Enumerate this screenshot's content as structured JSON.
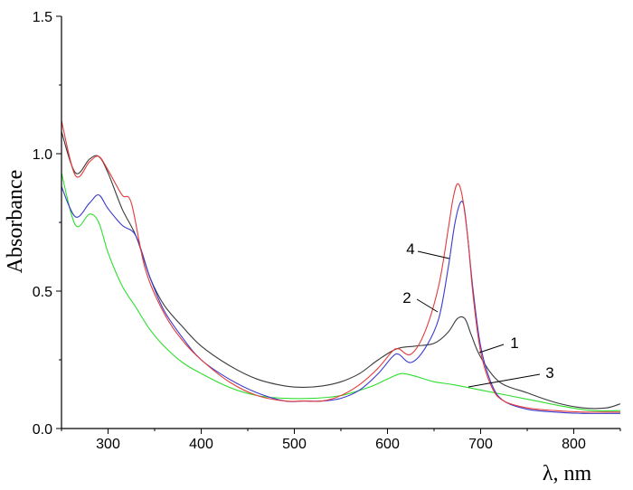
{
  "chart_data": {
    "type": "line",
    "xlabel": "λ, nm",
    "ylabel": "Absorbance",
    "xlim": [
      250,
      850
    ],
    "ylim": [
      0,
      1.5
    ],
    "x_ticks": [
      300,
      400,
      500,
      600,
      700,
      800
    ],
    "x_tick_labels": [
      "300",
      "400",
      "500",
      "600",
      "700",
      "800"
    ],
    "y_ticks": [
      0,
      0.5,
      1.0,
      1.5
    ],
    "y_tick_labels": [
      "0.0",
      "0.5",
      "1.0",
      "1.5"
    ],
    "grid": false,
    "series": [
      {
        "name": "1",
        "color": "#3a3a3a",
        "x": [
          250,
          265,
          280,
          290,
          300,
          315,
          330,
          345,
          360,
          380,
          400,
          430,
          460,
          490,
          510,
          530,
          550,
          570,
          590,
          610,
          630,
          650,
          665,
          675,
          683,
          690,
          700,
          720,
          750,
          780,
          810,
          835,
          850
        ],
        "y": [
          1.08,
          0.93,
          0.98,
          0.99,
          0.93,
          0.8,
          0.7,
          0.55,
          0.45,
          0.37,
          0.3,
          0.23,
          0.18,
          0.155,
          0.15,
          0.155,
          0.17,
          0.2,
          0.25,
          0.29,
          0.3,
          0.31,
          0.35,
          0.4,
          0.4,
          0.34,
          0.26,
          0.17,
          0.13,
          0.095,
          0.075,
          0.075,
          0.09
        ]
      },
      {
        "name": "2",
        "color": "#3a3acc",
        "x": [
          250,
          265,
          280,
          290,
          300,
          315,
          330,
          345,
          360,
          380,
          400,
          430,
          460,
          490,
          510,
          530,
          550,
          570,
          590,
          605,
          612,
          625,
          640,
          655,
          665,
          672,
          678,
          682,
          686,
          692,
          700,
          712,
          725,
          750,
          780,
          810,
          850
        ],
        "y": [
          0.88,
          0.77,
          0.82,
          0.85,
          0.8,
          0.74,
          0.7,
          0.55,
          0.43,
          0.33,
          0.25,
          0.18,
          0.13,
          0.1,
          0.1,
          0.1,
          0.11,
          0.14,
          0.2,
          0.26,
          0.27,
          0.24,
          0.29,
          0.4,
          0.58,
          0.74,
          0.82,
          0.81,
          0.7,
          0.5,
          0.3,
          0.16,
          0.1,
          0.07,
          0.06,
          0.055,
          0.055
        ]
      },
      {
        "name": "3",
        "color": "#2ede2e",
        "x": [
          250,
          265,
          280,
          290,
          300,
          315,
          330,
          345,
          360,
          380,
          400,
          430,
          460,
          490,
          520,
          550,
          580,
          600,
          615,
          630,
          650,
          670,
          700,
          730,
          760,
          790,
          820,
          850
        ],
        "y": [
          0.93,
          0.74,
          0.78,
          0.75,
          0.64,
          0.52,
          0.44,
          0.36,
          0.3,
          0.24,
          0.2,
          0.15,
          0.12,
          0.11,
          0.11,
          0.12,
          0.15,
          0.18,
          0.2,
          0.19,
          0.17,
          0.16,
          0.14,
          0.12,
          0.1,
          0.08,
          0.065,
          0.065
        ]
      },
      {
        "name": "4",
        "color": "#e43a3a",
        "x": [
          250,
          265,
          280,
          290,
          300,
          315,
          325,
          340,
          360,
          380,
          400,
          430,
          460,
          490,
          510,
          530,
          550,
          570,
          590,
          605,
          612,
          625,
          640,
          655,
          665,
          670,
          675,
          680,
          686,
          692,
          700,
          712,
          725,
          750,
          780,
          810,
          850
        ],
        "y": [
          1.12,
          0.92,
          0.97,
          0.99,
          0.94,
          0.85,
          0.82,
          0.58,
          0.42,
          0.32,
          0.25,
          0.17,
          0.12,
          0.1,
          0.1,
          0.1,
          0.12,
          0.16,
          0.22,
          0.28,
          0.29,
          0.27,
          0.35,
          0.52,
          0.72,
          0.83,
          0.89,
          0.85,
          0.7,
          0.48,
          0.28,
          0.15,
          0.1,
          0.075,
          0.065,
          0.06,
          0.06
        ]
      }
    ]
  }
}
